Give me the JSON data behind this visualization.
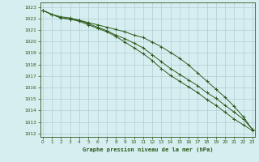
{
  "title": "Graphe pression niveau de la mer (hPa)",
  "bg_color": "#d6eef0",
  "grid_color": "#b0cdd4",
  "line_color": "#2d5a1b",
  "x_ticks": [
    0,
    1,
    2,
    3,
    4,
    5,
    6,
    7,
    8,
    9,
    10,
    11,
    12,
    13,
    14,
    15,
    16,
    17,
    18,
    19,
    20,
    21,
    22,
    23
  ],
  "y_ticks": [
    1012,
    1013,
    1014,
    1015,
    1016,
    1017,
    1018,
    1019,
    1020,
    1021,
    1022,
    1023
  ],
  "xlim": [
    -0.3,
    23.3
  ],
  "ylim": [
    1011.7,
    1023.4
  ],
  "line1": [
    1022.7,
    1022.35,
    1022.05,
    1021.95,
    1021.75,
    1021.45,
    1021.15,
    1020.85,
    1020.45,
    1019.95,
    1019.45,
    1018.95,
    1018.35,
    1017.65,
    1017.05,
    1016.55,
    1016.05,
    1015.55,
    1014.95,
    1014.45,
    1013.85,
    1013.25,
    1012.75,
    1012.25
  ],
  "line2": [
    1022.7,
    1022.35,
    1022.05,
    1021.95,
    1021.85,
    1021.55,
    1021.25,
    1020.95,
    1020.55,
    1020.25,
    1019.85,
    1019.45,
    1018.85,
    1018.25,
    1017.65,
    1017.15,
    1016.65,
    1016.15,
    1015.55,
    1015.05,
    1014.45,
    1013.85,
    1013.25,
    1012.35
  ],
  "line3": [
    1022.7,
    1022.35,
    1022.15,
    1022.05,
    1021.85,
    1021.65,
    1021.45,
    1021.25,
    1021.05,
    1020.85,
    1020.55,
    1020.35,
    1019.95,
    1019.55,
    1019.05,
    1018.55,
    1017.95,
    1017.25,
    1016.55,
    1015.85,
    1015.15,
    1014.35,
    1013.45,
    1012.35
  ]
}
